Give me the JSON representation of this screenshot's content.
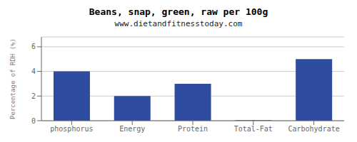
{
  "chart_data": {
    "type": "bar",
    "title": "Beans, snap, green, raw per 100g",
    "subtitle": "www.dietandfitnesstoday.com",
    "categories": [
      "phosphorus",
      "Energy",
      "Protein",
      "Total-Fat",
      "Carbohydrate"
    ],
    "values": [
      4.0,
      2.0,
      3.0,
      0.05,
      5.0
    ],
    "color": "#2e4d9e",
    "ylabel": "Percentage of RDH (%)",
    "ylim": [
      0,
      6.8
    ],
    "yticks": [
      0,
      2,
      4,
      6
    ],
    "grid": true
  }
}
